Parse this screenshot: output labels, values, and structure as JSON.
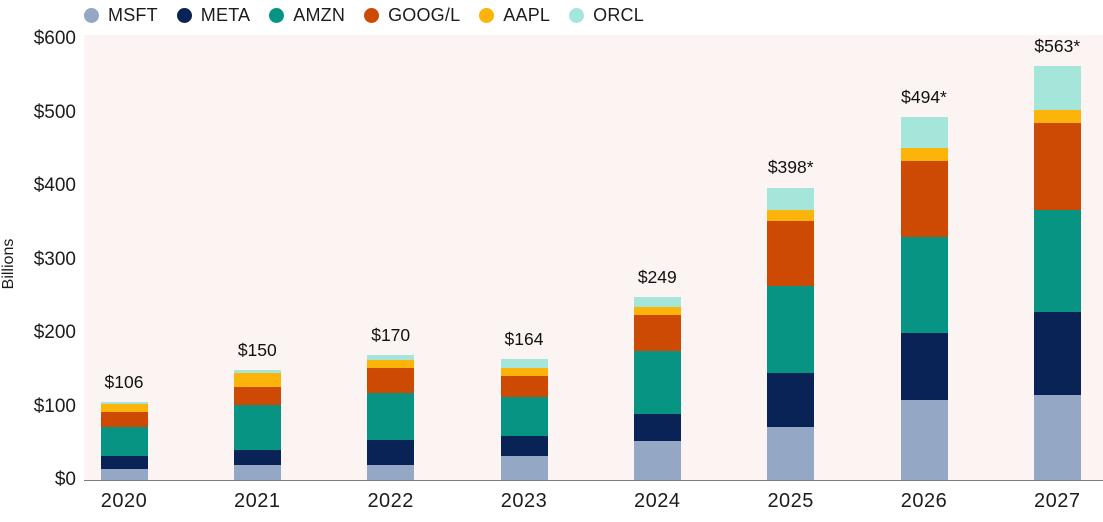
{
  "chart_data": {
    "type": "bar",
    "stacked": true,
    "ylabel": "Billions",
    "ylim": [
      0,
      600
    ],
    "grid": false,
    "legend_position": "top",
    "plot_bg_color": "#fcf4f2",
    "axis_line_color": "#7d7d7d",
    "text_color": "#1c1c1c",
    "y_ticks": [
      {
        "value": 0,
        "label": "$0"
      },
      {
        "value": 100,
        "label": "$100"
      },
      {
        "value": 200,
        "label": "$200"
      },
      {
        "value": 300,
        "label": "$300"
      },
      {
        "value": 400,
        "label": "$400"
      },
      {
        "value": 500,
        "label": "$500"
      },
      {
        "value": 600,
        "label": "$600"
      }
    ],
    "categories": [
      "2020",
      "2021",
      "2022",
      "2023",
      "2024",
      "2025",
      "2026",
      "2027"
    ],
    "totals": [
      106,
      150,
      170,
      164,
      249,
      398,
      494,
      563
    ],
    "total_labels": [
      "$106",
      "$150",
      "$170",
      "$164",
      "$249",
      "$398*",
      "$494*",
      "$563*"
    ],
    "series": [
      {
        "name": "MSFT",
        "color": "#94a7c4",
        "values": [
          15,
          21,
          21,
          33,
          53,
          72,
          109,
          115
        ]
      },
      {
        "name": "META",
        "color": "#0a2357",
        "values": [
          18,
          20,
          34,
          27,
          37,
          73,
          91,
          114
        ]
      },
      {
        "name": "AMZN",
        "color": "#079483",
        "values": [
          39,
          61,
          64,
          53,
          86,
          119,
          131,
          139
        ]
      },
      {
        "name": "GOOG/L",
        "color": "#cc4a04",
        "values": [
          20,
          24,
          33,
          28,
          48,
          88,
          103,
          118
        ]
      },
      {
        "name": "AAPL",
        "color": "#fdb40a",
        "values": [
          11,
          20,
          11,
          12,
          11,
          16,
          18,
          17
        ]
      },
      {
        "name": "ORCL",
        "color": "#a5e6da",
        "values": [
          3,
          4,
          7,
          11,
          14,
          30,
          42,
          60
        ]
      }
    ]
  }
}
